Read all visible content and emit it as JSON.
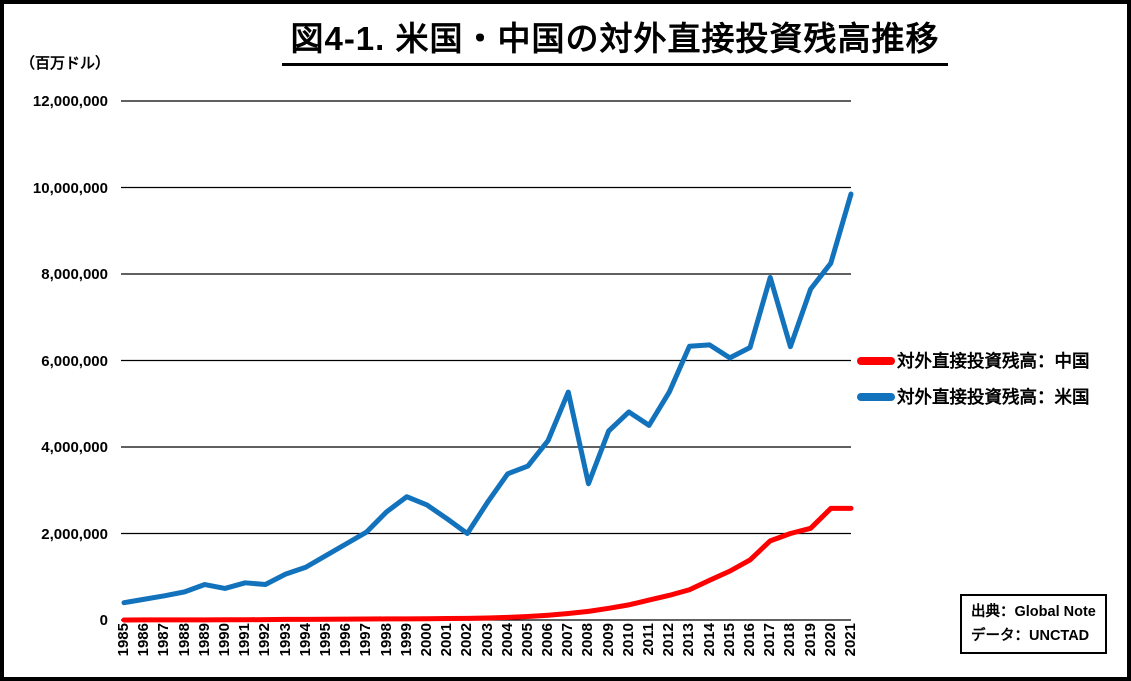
{
  "chart_data": {
    "type": "line",
    "title": "図4-1. 米国・中国の対外直接投資残高推移",
    "unit_label": "（百万ドル）",
    "xlabel": "",
    "ylabel": "百万ドル",
    "ylim": [
      0,
      12000000
    ],
    "ytick_step": 2000000,
    "grid": true,
    "legend_position": "right",
    "x": [
      1985,
      1986,
      1987,
      1988,
      1989,
      1990,
      1991,
      1992,
      1993,
      1994,
      1995,
      1996,
      1997,
      1998,
      1999,
      2000,
      2001,
      2002,
      2003,
      2004,
      2005,
      2006,
      2007,
      2008,
      2009,
      2010,
      2011,
      2012,
      2013,
      2014,
      2015,
      2016,
      2017,
      2018,
      2019,
      2020,
      2021
    ],
    "series": [
      {
        "name": "対外直接投資残高：中国",
        "color": "#FF0000",
        "values": [
          900,
          1500,
          2000,
          2800,
          3500,
          4500,
          5400,
          9400,
          13800,
          15800,
          17800,
          19900,
          22500,
          25200,
          26900,
          27800,
          34700,
          37200,
          45000,
          60000,
          80000,
          110000,
          150000,
          200000,
          270000,
          350000,
          460000,
          570000,
          700000,
          920000,
          1130000,
          1390000,
          1830000,
          2000000,
          2120000,
          2580000,
          2580000
        ]
      },
      {
        "name": "対外直接投資残高：米国",
        "color": "#1272BC",
        "values": [
          400000,
          480000,
          560000,
          650000,
          820000,
          730000,
          860000,
          820000,
          1060000,
          1220000,
          1490000,
          1760000,
          2030000,
          2500000,
          2850000,
          2660000,
          2340000,
          2000000,
          2720000,
          3380000,
          3560000,
          4150000,
          5270000,
          3150000,
          4370000,
          4810000,
          4500000,
          5270000,
          6330000,
          6360000,
          6060000,
          6300000,
          7920000,
          6320000,
          7650000,
          8250000,
          9850000
        ]
      }
    ]
  },
  "source": {
    "line1": "出典：Global Note",
    "line2": "データ：UNCTAD"
  }
}
